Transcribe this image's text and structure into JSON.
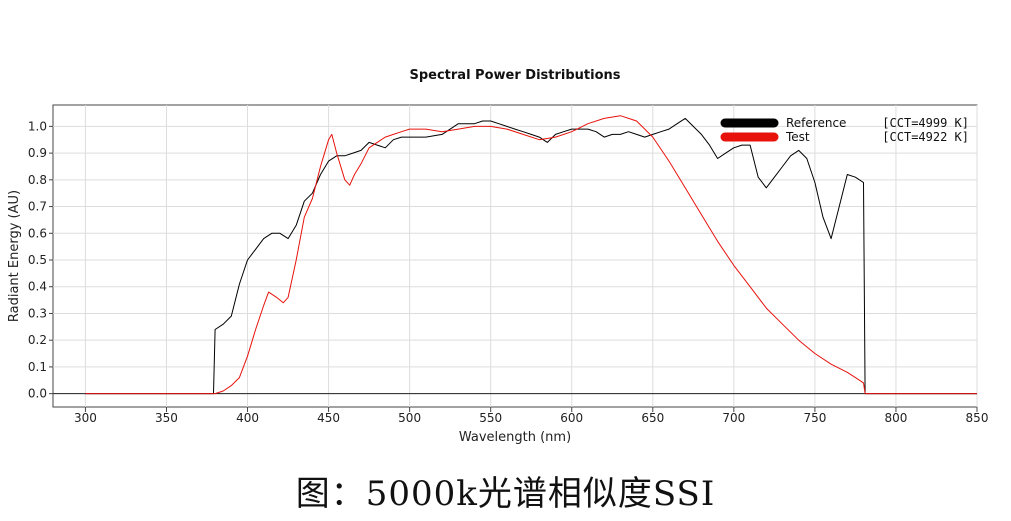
{
  "chart_data": {
    "type": "line",
    "title": "Spectral Power Distributions",
    "xlabel": "Wavelength (nm)",
    "ylabel": "Radiant Energy (AU)",
    "xlim": [
      280,
      850
    ],
    "ylim": [
      -0.05,
      1.08
    ],
    "xticks": [
      300,
      350,
      400,
      450,
      500,
      550,
      600,
      650,
      700,
      750,
      800,
      850
    ],
    "yticks": [
      0.0,
      0.1,
      0.2,
      0.3,
      0.4,
      0.5,
      0.6,
      0.7,
      0.8,
      0.9,
      1.0
    ],
    "grid": true,
    "legend_position": "top-right",
    "series": [
      {
        "name": "Reference",
        "cct": "[CCT=4999 K]",
        "color": "#000000",
        "x": [
          300,
          379,
          380,
          385,
          390,
          395,
          400,
          405,
          410,
          415,
          420,
          425,
          430,
          435,
          440,
          445,
          450,
          455,
          460,
          465,
          470,
          475,
          480,
          485,
          490,
          495,
          500,
          510,
          520,
          525,
          530,
          535,
          540,
          545,
          550,
          555,
          560,
          565,
          570,
          575,
          580,
          585,
          590,
          595,
          600,
          605,
          610,
          615,
          620,
          625,
          630,
          635,
          640,
          645,
          650,
          655,
          660,
          665,
          670,
          675,
          680,
          685,
          690,
          695,
          700,
          705,
          710,
          715,
          720,
          725,
          730,
          735,
          740,
          745,
          750,
          755,
          760,
          765,
          770,
          775,
          780,
          781,
          785,
          800,
          850
        ],
        "y": [
          0.0,
          0.0,
          0.24,
          0.26,
          0.29,
          0.41,
          0.5,
          0.54,
          0.58,
          0.6,
          0.6,
          0.58,
          0.63,
          0.72,
          0.75,
          0.82,
          0.87,
          0.89,
          0.89,
          0.9,
          0.91,
          0.94,
          0.93,
          0.92,
          0.95,
          0.96,
          0.96,
          0.96,
          0.97,
          0.99,
          1.01,
          1.01,
          1.01,
          1.02,
          1.02,
          1.01,
          1.0,
          0.99,
          0.98,
          0.97,
          0.96,
          0.94,
          0.97,
          0.98,
          0.99,
          0.99,
          0.99,
          0.98,
          0.96,
          0.97,
          0.97,
          0.98,
          0.97,
          0.96,
          0.97,
          0.98,
          0.99,
          1.01,
          1.03,
          1.0,
          0.97,
          0.93,
          0.88,
          0.9,
          0.92,
          0.93,
          0.93,
          0.81,
          0.77,
          0.81,
          0.85,
          0.89,
          0.91,
          0.88,
          0.79,
          0.66,
          0.58,
          0.7,
          0.82,
          0.81,
          0.79,
          0.0,
          0.0,
          0.0,
          0.0
        ]
      },
      {
        "name": "Test",
        "cct": "[CCT=4922 K]",
        "color": "#e8120c",
        "x": [
          300,
          380,
          385,
          390,
          395,
          400,
          405,
          410,
          413,
          418,
          422,
          425,
          430,
          435,
          440,
          445,
          450,
          452,
          455,
          460,
          463,
          466,
          470,
          475,
          480,
          485,
          490,
          495,
          500,
          510,
          520,
          530,
          540,
          550,
          560,
          570,
          580,
          590,
          600,
          610,
          620,
          630,
          640,
          650,
          660,
          670,
          680,
          690,
          700,
          710,
          720,
          730,
          740,
          750,
          760,
          770,
          775,
          780,
          781,
          785,
          850
        ],
        "y": [
          0.0,
          0.0,
          0.01,
          0.03,
          0.06,
          0.14,
          0.24,
          0.33,
          0.38,
          0.36,
          0.34,
          0.36,
          0.5,
          0.66,
          0.73,
          0.85,
          0.95,
          0.97,
          0.9,
          0.8,
          0.78,
          0.82,
          0.86,
          0.92,
          0.94,
          0.96,
          0.97,
          0.98,
          0.99,
          0.99,
          0.98,
          0.99,
          1.0,
          1.0,
          0.99,
          0.97,
          0.95,
          0.96,
          0.98,
          1.01,
          1.03,
          1.04,
          1.02,
          0.96,
          0.87,
          0.77,
          0.67,
          0.57,
          0.48,
          0.4,
          0.32,
          0.26,
          0.2,
          0.15,
          0.11,
          0.08,
          0.06,
          0.04,
          0.0,
          0.0,
          0.0
        ]
      }
    ]
  },
  "caption": "图：5000k光谱相似度SSI"
}
